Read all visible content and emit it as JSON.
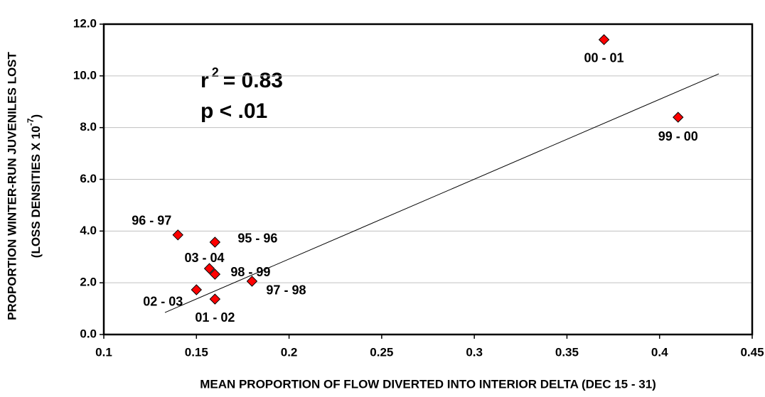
{
  "chart_data": {
    "type": "scatter",
    "x_label": "MEAN PROPORTION OF FLOW DIVERTED INTO INTERIOR DELTA (DEC 15 - 31)",
    "y_label": {
      "line1": "PROPORTION WINTER-RUN JUVENILES LOST",
      "line2": "(LOSS DENSITIES X 10",
      "sup": "-7",
      "close": ")"
    },
    "annotations": {
      "r": "r",
      "r_sup": "2",
      "r_rest": "= 0.83",
      "p": "p < .01"
    },
    "labels": [
      "00 - 01",
      "99 - 00",
      "96 - 97",
      "95 - 96",
      "03 - 04",
      "98 - 99",
      "97 - 98",
      "02 - 03",
      "01 - 02"
    ],
    "x": [
      0.37,
      0.41,
      0.14,
      0.16,
      0.157,
      0.16,
      0.18,
      0.15,
      0.16
    ],
    "values": [
      11.4,
      8.4,
      3.85,
      3.57,
      2.55,
      2.33,
      2.06,
      1.73,
      1.37
    ],
    "color": "#ff0000",
    "trendline": {
      "x": [
        0.133,
        0.432
      ],
      "y": [
        0.85,
        10.08
      ]
    },
    "xlim": [
      0.1,
      0.45
    ],
    "xticks": [
      0.1,
      0.15,
      0.2,
      0.25,
      0.3,
      0.35,
      0.4,
      0.45
    ],
    "ylim": [
      0,
      12
    ],
    "yticks": [
      {
        "value": 0,
        "label": "0.0"
      },
      {
        "value": 2,
        "label": "2.0"
      },
      {
        "value": 4,
        "label": "4.0"
      },
      {
        "value": 6,
        "label": "6.0"
      },
      {
        "value": 8,
        "label": "8.0"
      },
      {
        "value": 10,
        "label": "10.0"
      },
      {
        "value": 12,
        "label": "12.0"
      }
    ],
    "grid": true
  }
}
